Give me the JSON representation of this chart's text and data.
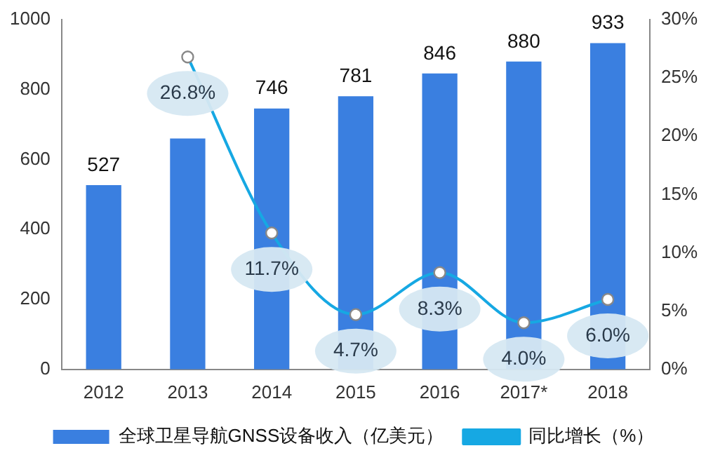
{
  "chart_data": {
    "type": "bar",
    "categories": [
      "2012",
      "2013",
      "2014",
      "2015",
      "2016",
      "2017*",
      "2018"
    ],
    "series": [
      {
        "name": "全球卫星导航GNSS设备收入（亿美元）",
        "color": "#3a7fe0",
        "values": [
          527,
          660,
          746,
          781,
          846,
          880,
          933
        ],
        "value_labels": [
          "527",
          null,
          "746",
          "781",
          "846",
          "880",
          "933"
        ]
      },
      {
        "name": "同比增长（%）",
        "type": "line",
        "axis": "y2",
        "color": "#16a8e3",
        "values": [
          null,
          26.8,
          11.7,
          4.7,
          8.3,
          4.0,
          6.0
        ],
        "value_labels": [
          null,
          "26.8%",
          "11.7%",
          "4.7%",
          "8.3%",
          "4.0%",
          "6.0%"
        ]
      }
    ],
    "ylim": [
      0,
      1000
    ],
    "yticks": [
      0,
      200,
      400,
      600,
      800,
      1000
    ],
    "y2lim": [
      0,
      30
    ],
    "y2ticks": [
      {
        "value": 0,
        "label": "0%"
      },
      {
        "value": 5,
        "label": "5%"
      },
      {
        "value": 10,
        "label": "10%"
      },
      {
        "value": 15,
        "label": "15%"
      },
      {
        "value": 20,
        "label": "20%"
      },
      {
        "value": 25,
        "label": "25%"
      },
      {
        "value": 30,
        "label": "30%"
      }
    ],
    "grid": false,
    "legend": "bottom",
    "marker": "circle",
    "line_style": "solid"
  }
}
